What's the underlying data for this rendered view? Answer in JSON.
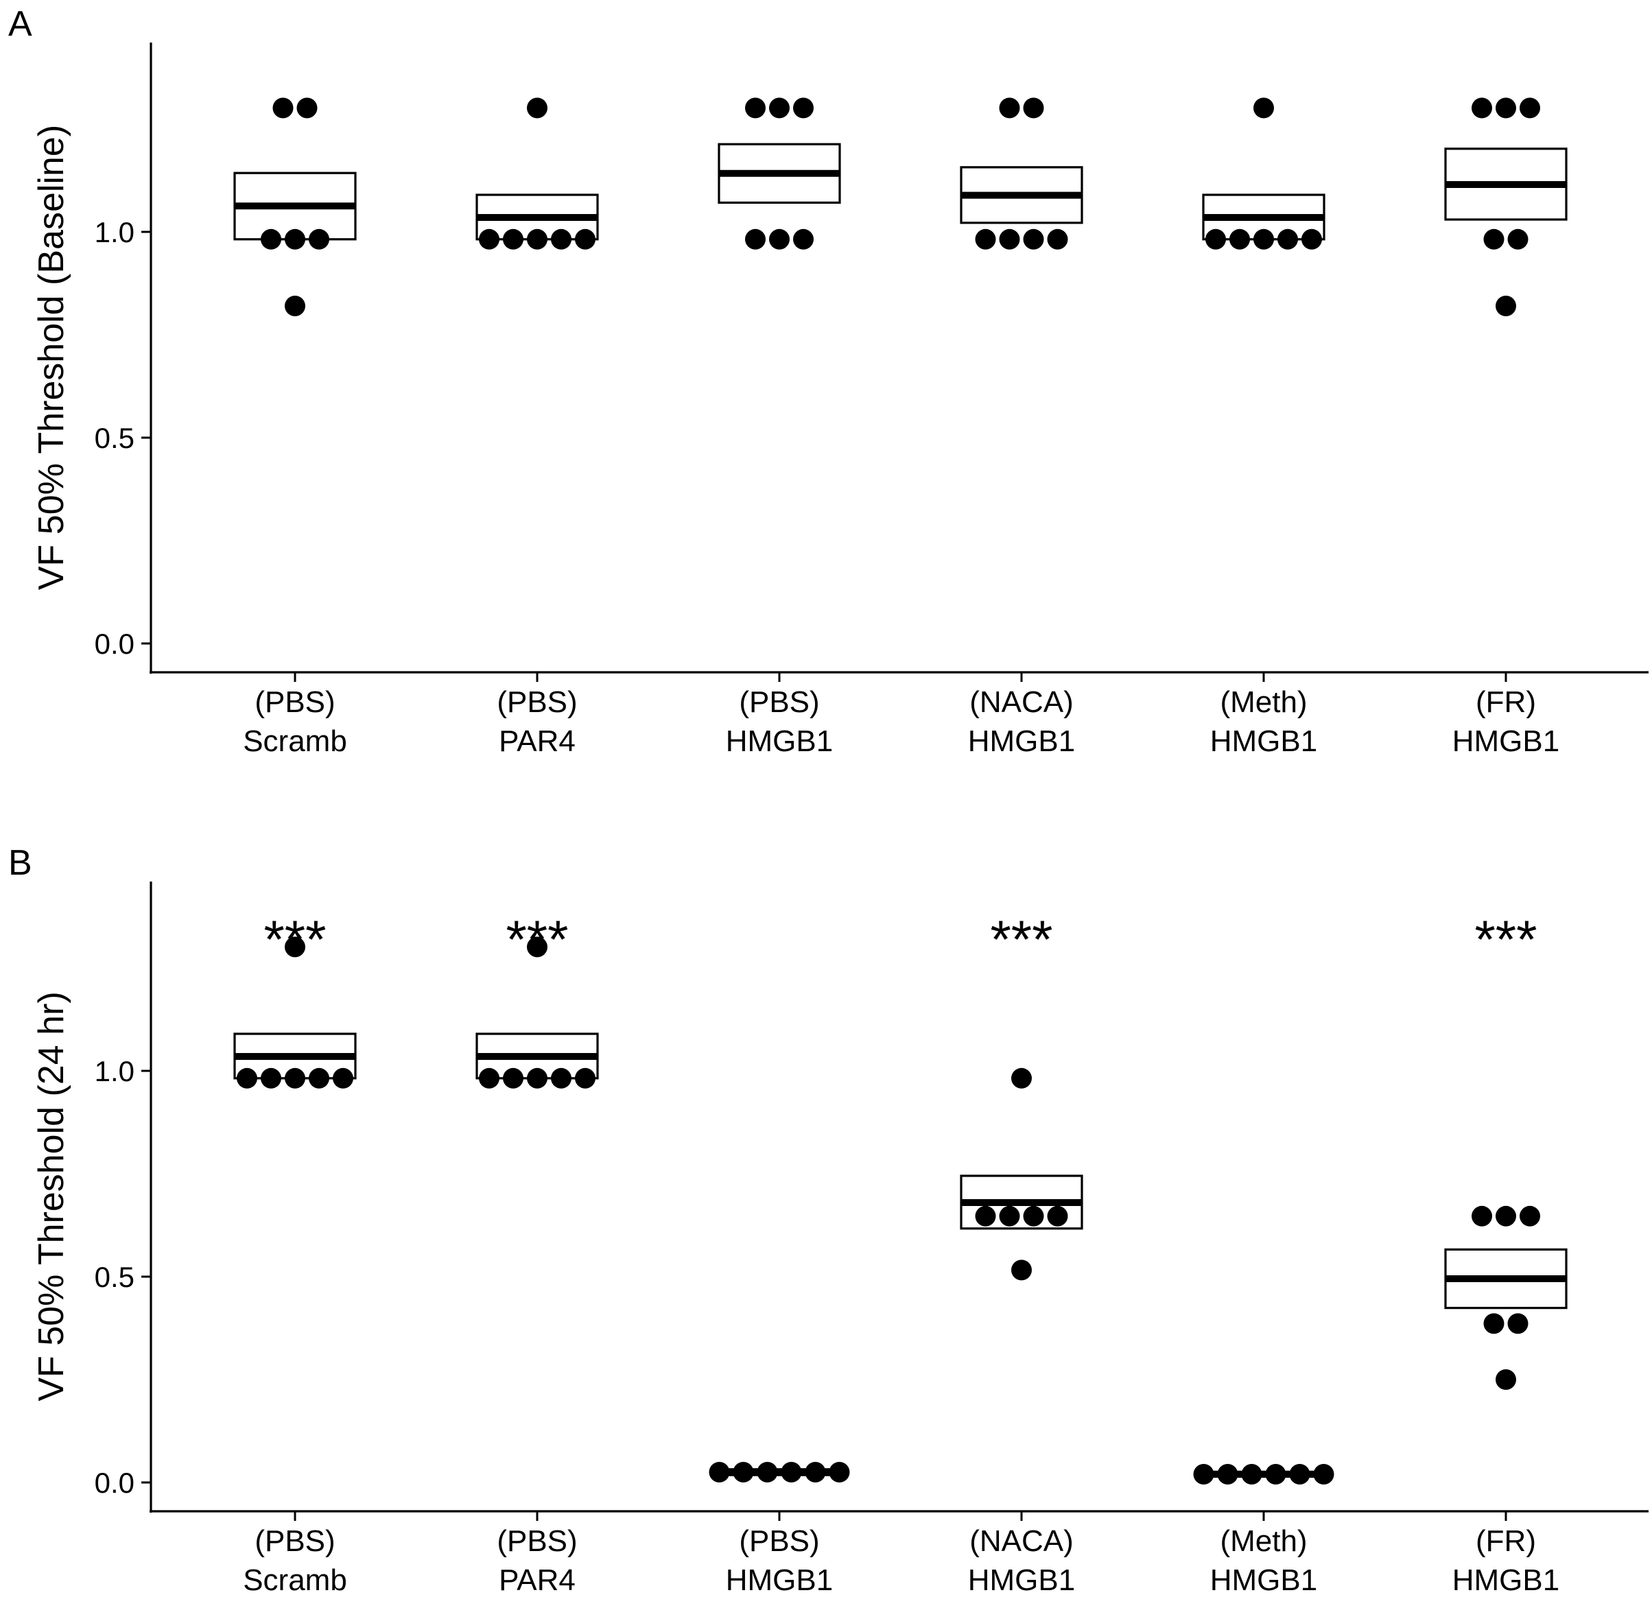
{
  "chart_data": [
    {
      "panel": "A",
      "type": "scatter",
      "ylabel": "VF 50% Threshold (Baseline)",
      "ylim": [
        -0.07,
        1.46
      ],
      "yticks": [
        "0.0",
        "0.5",
        "1.0"
      ],
      "grid": false,
      "groups": [
        {
          "line1": "(PBS)",
          "line2": "Scramb",
          "mean": 1.063,
          "box": [
            0.982,
            1.143
          ],
          "points": [
            1.301,
            1.301,
            0.982,
            0.982,
            0.982,
            0.82
          ],
          "stars": ""
        },
        {
          "line1": "(PBS)",
          "line2": "PAR4",
          "mean": 1.035,
          "box": [
            0.982,
            1.09
          ],
          "points": [
            1.301,
            0.982,
            0.982,
            0.982,
            0.982,
            0.982
          ],
          "stars": ""
        },
        {
          "line1": "(PBS)",
          "line2": "HMGB1",
          "mean": 1.142,
          "box": [
            1.071,
            1.213
          ],
          "points": [
            1.301,
            1.301,
            1.301,
            0.982,
            0.982,
            0.982
          ],
          "stars": ""
        },
        {
          "line1": "(NACA)",
          "line2": "HMGB1",
          "mean": 1.089,
          "box": [
            1.022,
            1.157
          ],
          "points": [
            1.301,
            1.301,
            0.982,
            0.982,
            0.982,
            0.982
          ],
          "stars": ""
        },
        {
          "line1": "(Meth)",
          "line2": "HMGB1",
          "mean": 1.035,
          "box": [
            0.982,
            1.09
          ],
          "points": [
            1.301,
            0.982,
            0.982,
            0.982,
            0.982,
            0.982
          ],
          "stars": ""
        },
        {
          "line1": "(FR)",
          "line2": "HMGB1",
          "mean": 1.115,
          "box": [
            1.03,
            1.202
          ],
          "points": [
            1.301,
            1.301,
            1.301,
            0.982,
            0.982,
            0.82
          ],
          "stars": ""
        }
      ]
    },
    {
      "panel": "B",
      "type": "scatter",
      "ylabel": "VF 50% Threshold (24 hr)",
      "ylim": [
        -0.07,
        1.46
      ],
      "yticks": [
        "0.0",
        "0.5",
        "1.0"
      ],
      "grid": false,
      "groups": [
        {
          "line1": "(PBS)",
          "line2": "Scramb",
          "mean": 1.035,
          "box": [
            0.982,
            1.09
          ],
          "points": [
            1.301,
            0.982,
            0.982,
            0.982,
            0.982,
            0.982
          ],
          "stars": "***"
        },
        {
          "line1": "(PBS)",
          "line2": "PAR4",
          "mean": 1.035,
          "box": [
            0.982,
            1.09
          ],
          "points": [
            1.301,
            0.982,
            0.982,
            0.982,
            0.982,
            0.982
          ],
          "stars": "***"
        },
        {
          "line1": "(PBS)",
          "line2": "HMGB1",
          "mean": 0.025,
          "box": [
            0.018,
            0.032
          ],
          "points": [
            0.025,
            0.025,
            0.025,
            0.025,
            0.025,
            0.025
          ],
          "stars": ""
        },
        {
          "line1": "(NACA)",
          "line2": "HMGB1",
          "mean": 0.68,
          "box": [
            0.617,
            0.745
          ],
          "points": [
            0.982,
            0.647,
            0.647,
            0.647,
            0.647,
            0.516
          ],
          "stars": "***"
        },
        {
          "line1": "(Meth)",
          "line2": "HMGB1",
          "mean": 0.02,
          "box": [
            0.014,
            0.026
          ],
          "points": [
            0.02,
            0.02,
            0.02,
            0.02,
            0.02,
            0.02
          ],
          "stars": ""
        },
        {
          "line1": "(FR)",
          "line2": "HMGB1",
          "mean": 0.495,
          "box": [
            0.424,
            0.566
          ],
          "points": [
            0.647,
            0.647,
            0.647,
            0.386,
            0.386,
            0.25
          ],
          "stars": "***"
        }
      ]
    }
  ]
}
